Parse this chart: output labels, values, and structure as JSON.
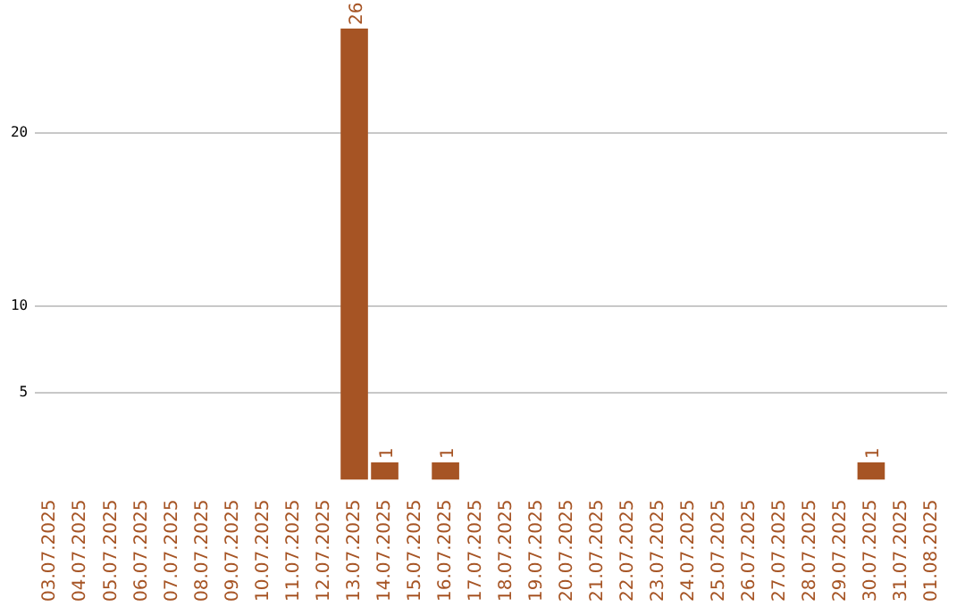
{
  "chart_data": {
    "type": "bar",
    "categories": [
      "03.07.2025",
      "04.07.2025",
      "05.07.2025",
      "06.07.2025",
      "07.07.2025",
      "08.07.2025",
      "09.07.2025",
      "10.07.2025",
      "11.07.2025",
      "12.07.2025",
      "13.07.2025",
      "14.07.2025",
      "15.07.2025",
      "16.07.2025",
      "17.07.2025",
      "18.07.2025",
      "19.07.2025",
      "20.07.2025",
      "21.07.2025",
      "22.07.2025",
      "23.07.2025",
      "24.07.2025",
      "25.07.2025",
      "26.07.2025",
      "27.07.2025",
      "28.07.2025",
      "29.07.2025",
      "30.07.2025",
      "31.07.2025",
      "01.08.2025"
    ],
    "values": [
      0,
      0,
      0,
      0,
      0,
      0,
      0,
      0,
      0,
      0,
      26,
      1,
      0,
      1,
      0,
      0,
      0,
      0,
      0,
      0,
      0,
      0,
      0,
      0,
      0,
      0,
      0,
      1,
      0,
      0
    ],
    "value_labels": [
      null,
      null,
      null,
      null,
      null,
      null,
      null,
      null,
      null,
      null,
      "26",
      "1",
      null,
      "1",
      null,
      null,
      null,
      null,
      null,
      null,
      null,
      null,
      null,
      null,
      null,
      null,
      null,
      "1",
      null,
      null
    ],
    "color": "#a65424",
    "ylim": [
      0,
      26
    ],
    "yticks": [
      5,
      10,
      20
    ],
    "grid": "y",
    "legend": false
  }
}
